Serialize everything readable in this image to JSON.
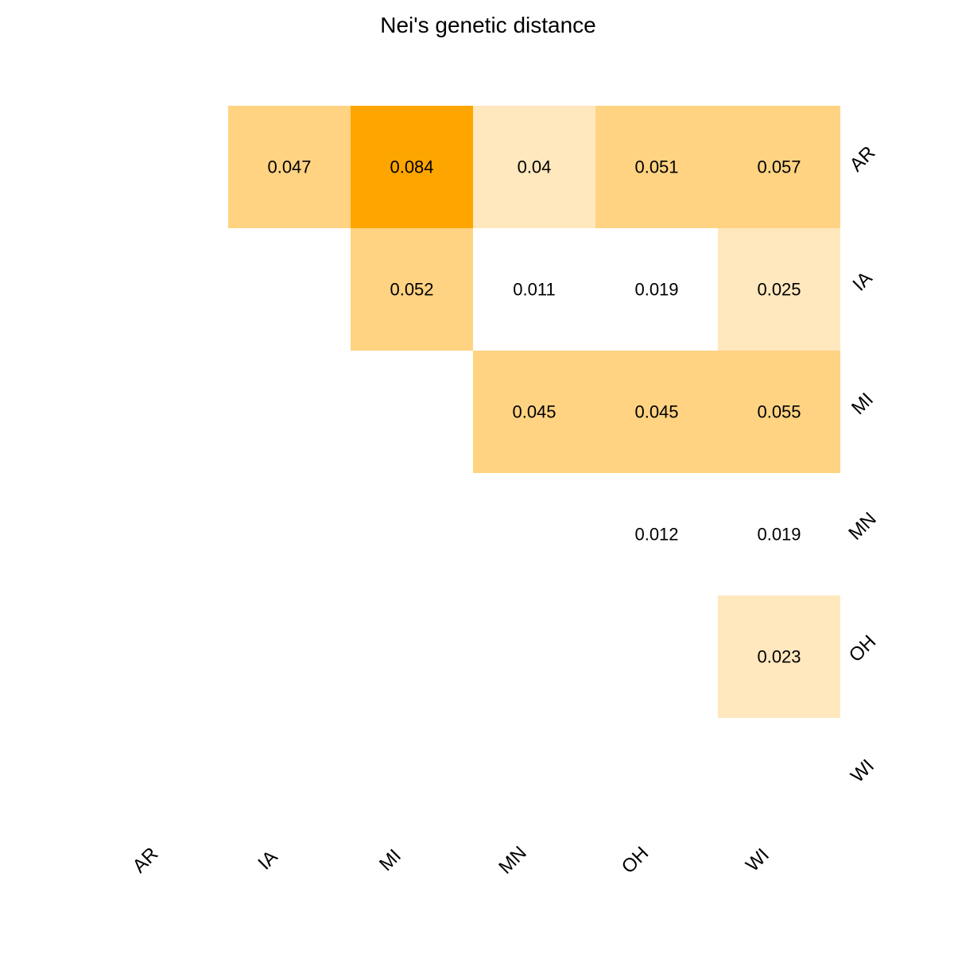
{
  "colors": {
    "low": "#FFFFFF",
    "mid_low": "#FFE7BE",
    "mid": "#FFD382",
    "high": "#FFA500",
    "text": "#000000",
    "background": "#FFFFFF"
  },
  "chart_data": {
    "type": "heatmap",
    "title": "Nei's genetic distance",
    "xlabel": "",
    "ylabel": "",
    "x_categories": [
      "AR",
      "IA",
      "MI",
      "MN",
      "OH",
      "WI"
    ],
    "y_categories": [
      "AR",
      "IA",
      "MI",
      "MN",
      "OH",
      "WI"
    ],
    "grid": false,
    "legend": "none",
    "cells": [
      {
        "row": "AR",
        "col": "IA",
        "value": 0.047,
        "label": "0.047"
      },
      {
        "row": "AR",
        "col": "MI",
        "value": 0.084,
        "label": "0.084"
      },
      {
        "row": "AR",
        "col": "MN",
        "value": 0.04,
        "label": "0.04"
      },
      {
        "row": "AR",
        "col": "OH",
        "value": 0.051,
        "label": "0.051"
      },
      {
        "row": "AR",
        "col": "WI",
        "value": 0.057,
        "label": "0.057"
      },
      {
        "row": "IA",
        "col": "MI",
        "value": 0.052,
        "label": "0.052"
      },
      {
        "row": "IA",
        "col": "MN",
        "value": 0.011,
        "label": "0.011"
      },
      {
        "row": "IA",
        "col": "OH",
        "value": 0.019,
        "label": "0.019"
      },
      {
        "row": "IA",
        "col": "WI",
        "value": 0.025,
        "label": "0.025"
      },
      {
        "row": "MI",
        "col": "MN",
        "value": 0.045,
        "label": "0.045"
      },
      {
        "row": "MI",
        "col": "OH",
        "value": 0.045,
        "label": "0.045"
      },
      {
        "row": "MI",
        "col": "WI",
        "value": 0.055,
        "label": "0.055"
      },
      {
        "row": "MN",
        "col": "OH",
        "value": 0.012,
        "label": "0.012"
      },
      {
        "row": "MN",
        "col": "WI",
        "value": 0.019,
        "label": "0.019"
      },
      {
        "row": "OH",
        "col": "WI",
        "value": 0.023,
        "label": "0.023"
      }
    ]
  }
}
